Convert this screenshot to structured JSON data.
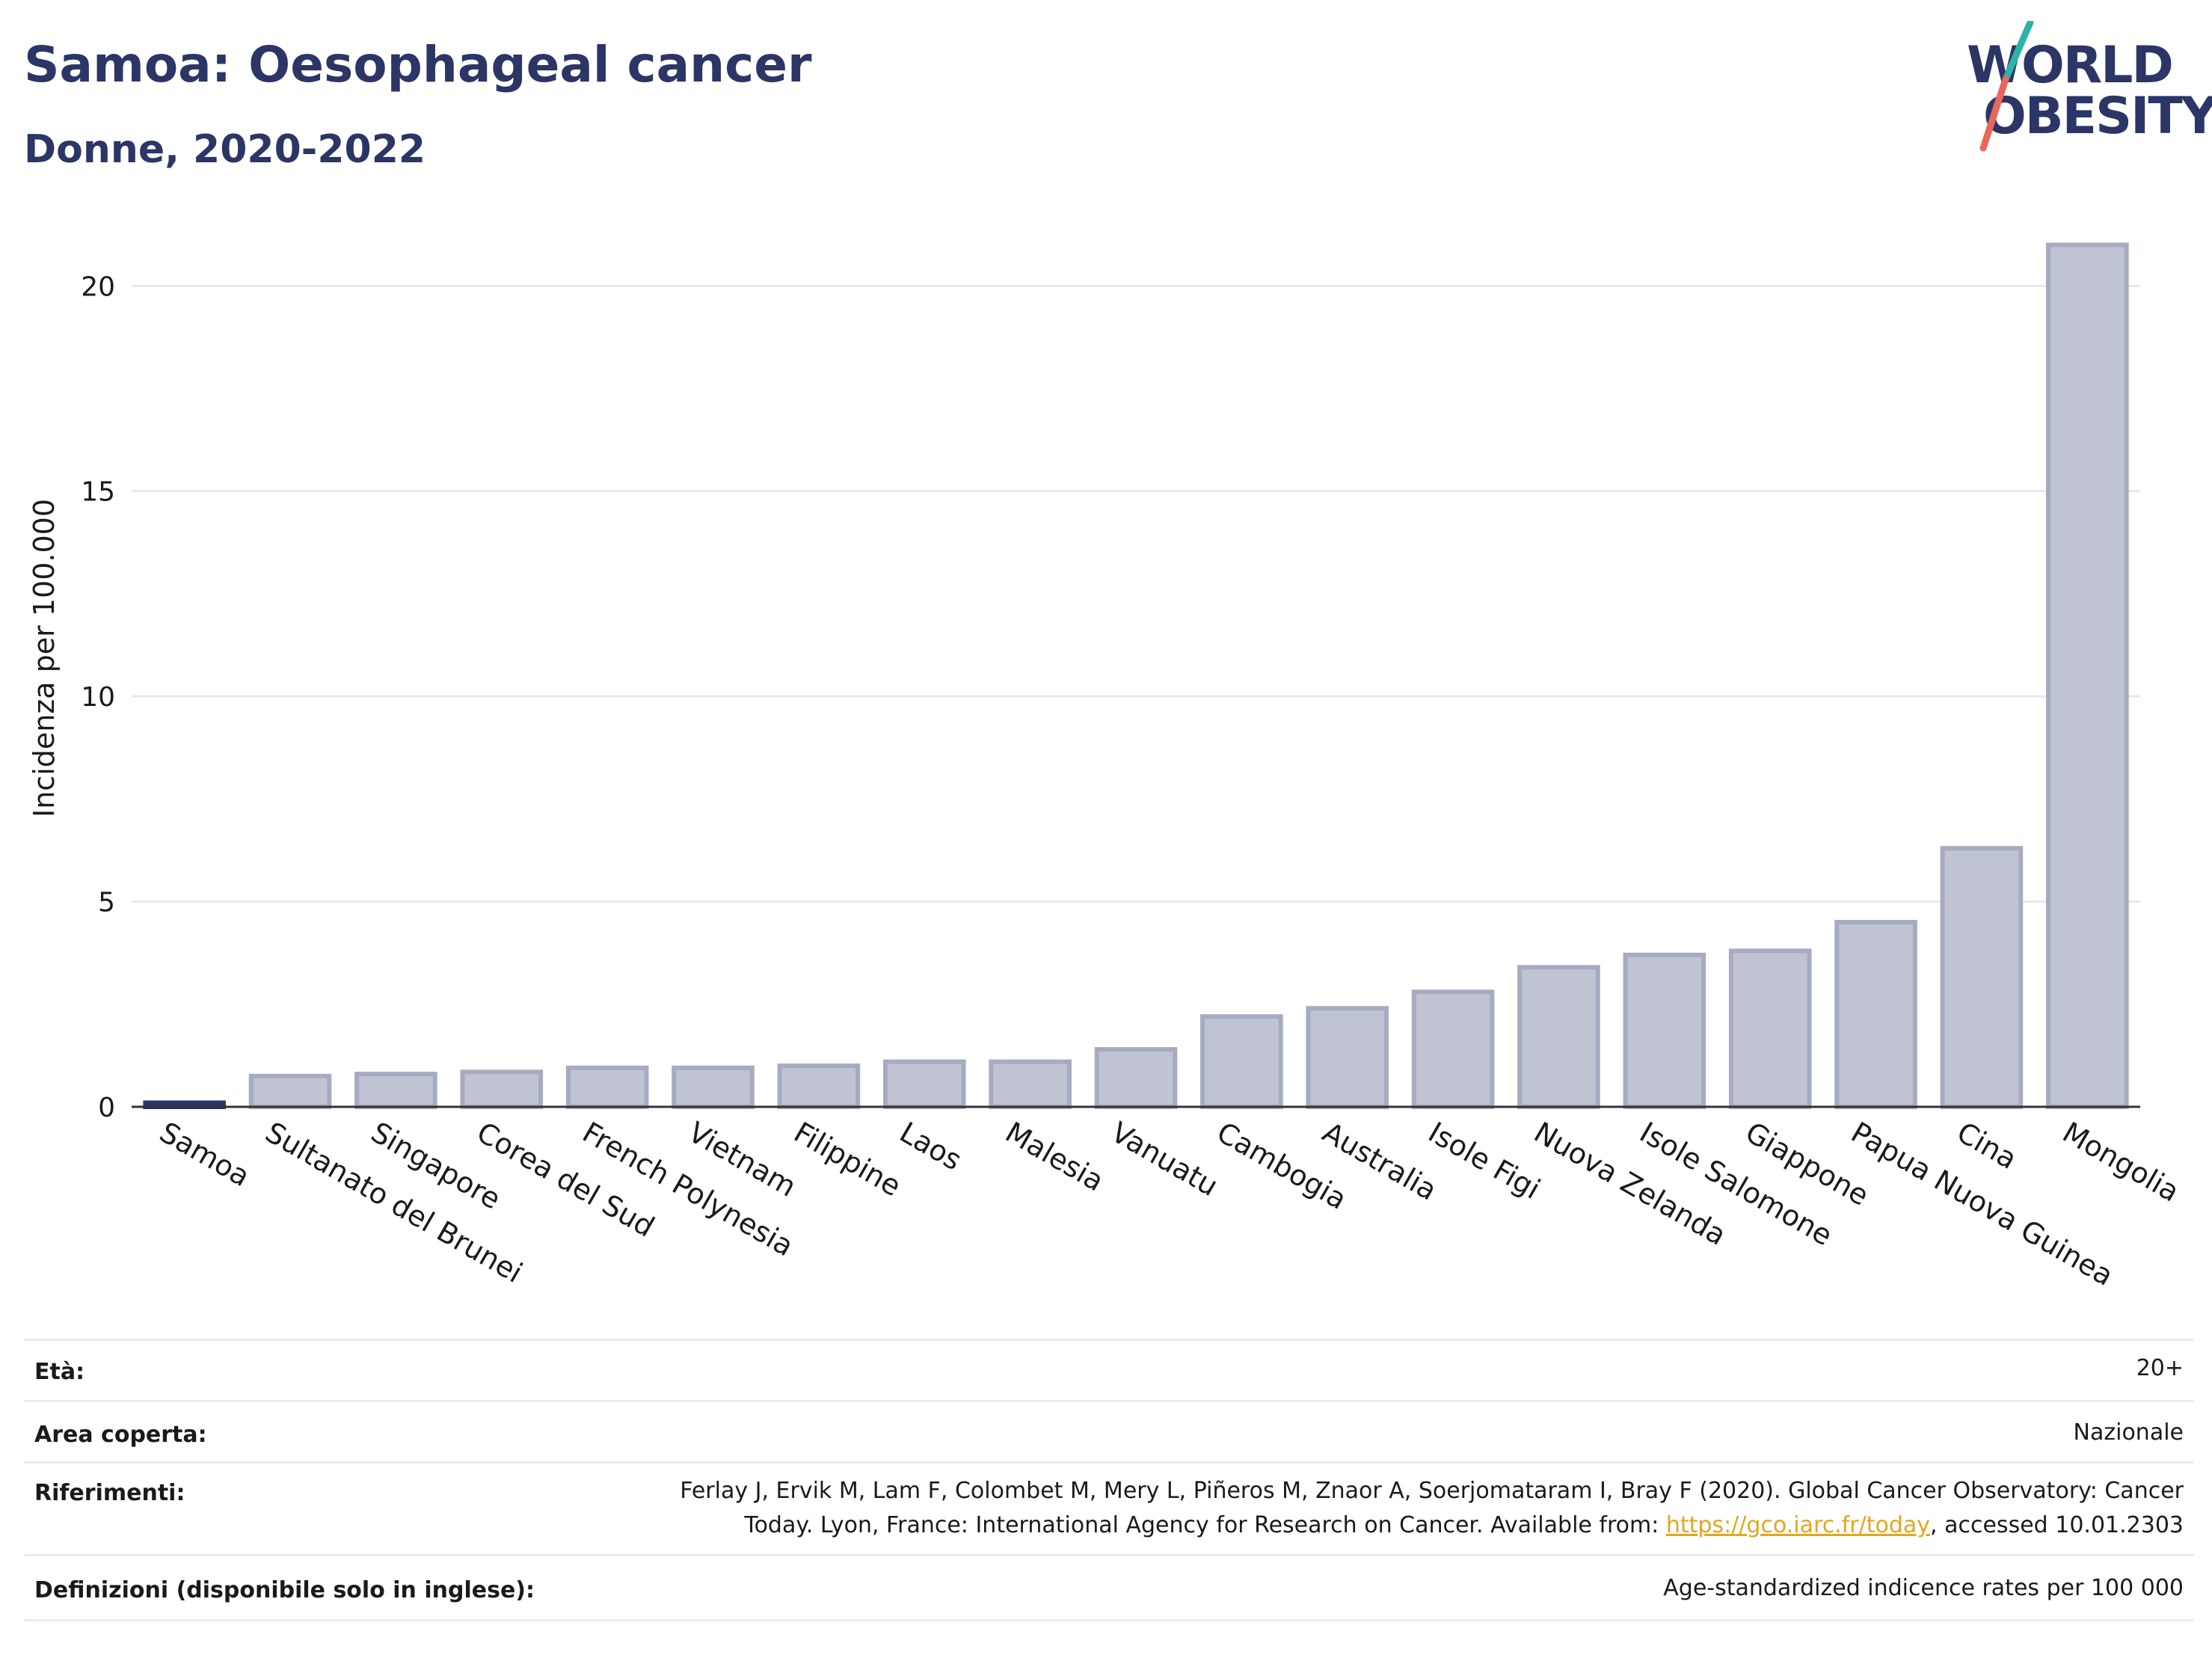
{
  "header": {
    "title": "Samoa: Oesophageal cancer",
    "subtitle": "Donne, 2020-2022"
  },
  "logo": {
    "line1": "WORLD",
    "line2": "OBESITY"
  },
  "chart_data": {
    "type": "bar",
    "ylabel": "Incidenza per 100.000",
    "xlabel": "",
    "ylim": [
      0,
      21.5
    ],
    "yticks": [
      0,
      5,
      10,
      15,
      20
    ],
    "grid": true,
    "categories": [
      "Samoa",
      "Sultanato del Brunei",
      "Singapore",
      "Corea del Sud",
      "French Polynesia",
      "Vietnam",
      "Filippine",
      "Laos",
      "Malesia",
      "Vanuatu",
      "Cambogia",
      "Australia",
      "Isole Figi",
      "Nuova Zelanda",
      "Isole Salomone",
      "Giappone",
      "Papua Nuova Guinea",
      "Cina",
      "Mongolia"
    ],
    "values": [
      0.1,
      0.75,
      0.8,
      0.85,
      0.95,
      0.95,
      1.0,
      1.1,
      1.1,
      1.4,
      2.2,
      2.4,
      2.8,
      3.4,
      3.7,
      3.8,
      4.5,
      6.3,
      21.0
    ],
    "highlight": "Samoa",
    "colors": {
      "bar": "#bfc3d2",
      "bar_edge": "#a6abc1",
      "highlight": "#2b3566",
      "grid": "#e6e8f0",
      "axis": "#333333"
    }
  },
  "info": {
    "age_label": "Età:",
    "age_value": "20+",
    "area_label": "Area coperta:",
    "area_value": "Nazionale",
    "ref_label": "Riferimenti:",
    "ref_line1": "Ferlay J, Ervik M, Lam F, Colombet M, Mery L, Piñeros M, Znaor A, Soerjomataram I, Bray F (2020). Global Cancer Observatory: Cancer",
    "ref_line2_pre": "Today. Lyon, France: International Agency for Research on Cancer. Available from: ",
    "ref_link": "https://gco.iarc.fr/today",
    "ref_line2_post": ", accessed 10.01.2303",
    "def_label": "Definizioni (disponibile solo in inglese):",
    "def_value": "Age-standardized indicence rates per 100 000"
  }
}
